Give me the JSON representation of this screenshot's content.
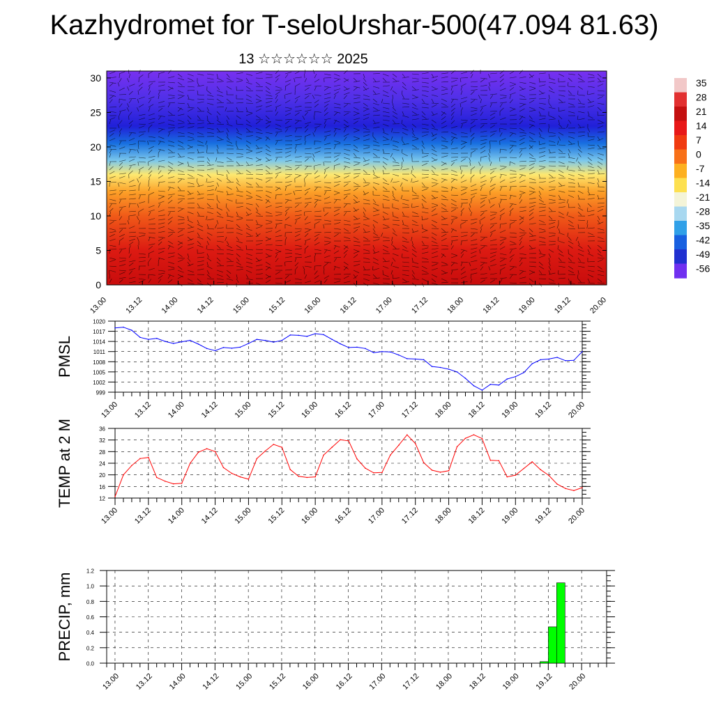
{
  "title": "Kazhydromet for T-seloUrshar-500(47.094 81.63)",
  "subtitle": "13 ☆☆☆☆☆☆ 2025",
  "chart_data": [
    {
      "type": "heatmap",
      "name": "cross-section",
      "ylim": [
        0,
        31
      ],
      "yticks": [
        0,
        5,
        10,
        15,
        20,
        25,
        30
      ],
      "xticks": [
        "13.00",
        "13.12",
        "14.00",
        "14.12",
        "15.00",
        "15.12",
        "16.00",
        "16.12",
        "17.00",
        "17.12",
        "18.00",
        "18.12",
        "19.00",
        "19.12",
        "20.00"
      ],
      "colorbar_labels": [
        "35",
        "28",
        "21",
        "14",
        "7",
        "0",
        "-7",
        "-14",
        "-21",
        "-28",
        "-35",
        "-42",
        "-49",
        "-56"
      ],
      "colorbar_colors": [
        "#f2c8c8",
        "#e23030",
        "#c41010",
        "#e81818",
        "#f03a10",
        "#f87018",
        "#fdb020",
        "#fde050",
        "#f4f4d8",
        "#a8d8f0",
        "#30a0e8",
        "#1860e0",
        "#2030d0",
        "#7030f0"
      ],
      "bands": [
        {
          "h": 0,
          "color": "#c80c0c"
        },
        {
          "h": 5,
          "color": "#dc1a12"
        },
        {
          "h": 10,
          "color": "#f05a18"
        },
        {
          "h": 13.5,
          "color": "#fca028"
        },
        {
          "h": 16,
          "color": "#fde870"
        },
        {
          "h": 18,
          "color": "#7cc8ec"
        },
        {
          "h": 20.5,
          "color": "#1870e0"
        },
        {
          "h": 23,
          "color": "#2020d8"
        },
        {
          "h": 27,
          "color": "#5030e8"
        },
        {
          "h": 31,
          "color": "#7830f0"
        }
      ]
    },
    {
      "type": "line",
      "ylabel": "PMSL",
      "ylim": [
        999,
        1020
      ],
      "yticks": [
        "1020",
        "1017",
        "1014",
        "1011",
        "1008",
        "1005",
        "1002",
        "999"
      ],
      "color": "#0000ff",
      "xticks": [
        "13.00",
        "13.12",
        "14.00",
        "14.12",
        "15.00",
        "15.12",
        "16.00",
        "16.12",
        "17.00",
        "17.12",
        "18.00",
        "18.12",
        "19.00",
        "19.12",
        "20.00"
      ],
      "x_hours": [
        0,
        3,
        6,
        9,
        12,
        15,
        18,
        21,
        24,
        27,
        30,
        33,
        36,
        39,
        42,
        45,
        48,
        51,
        54,
        57,
        60,
        63,
        66,
        69,
        72,
        75,
        78,
        81,
        84,
        87,
        90,
        93,
        96,
        99,
        102,
        105,
        108,
        111,
        114,
        117,
        120,
        123,
        126,
        129,
        132,
        135,
        138,
        141,
        144,
        147,
        150,
        153,
        156,
        159,
        162,
        165,
        168
      ],
      "values": [
        1018.0,
        1018.2,
        1017.3,
        1015.2,
        1014.6,
        1014.9,
        1014.0,
        1013.4,
        1013.9,
        1014.3,
        1013.2,
        1011.9,
        1011.3,
        1012.2,
        1012.0,
        1012.3,
        1013.4,
        1014.6,
        1014.3,
        1013.8,
        1014.3,
        1015.9,
        1015.8,
        1015.5,
        1016.3,
        1016.0,
        1014.6,
        1013.3,
        1012.2,
        1012.3,
        1011.9,
        1010.7,
        1011.0,
        1010.9,
        1010.0,
        1008.9,
        1008.8,
        1008.6,
        1006.6,
        1006.3,
        1005.8,
        1005.0,
        1003.1,
        1000.9,
        999.6,
        1001.3,
        1001.1,
        1002.9,
        1003.6,
        1004.8,
        1007.4,
        1008.6,
        1008.8,
        1009.3,
        1008.3,
        1008.4,
        1011.0
      ]
    },
    {
      "type": "line",
      "ylabel": "TEMP at 2 M",
      "ylim": [
        12,
        36
      ],
      "yticks": [
        "36",
        "32",
        "28",
        "24",
        "20",
        "16",
        "12"
      ],
      "color": "#ff0000",
      "xticks": [
        "13.00",
        "13.12",
        "14.00",
        "14.12",
        "15.00",
        "15.12",
        "16.00",
        "16.12",
        "17.00",
        "17.12",
        "18.00",
        "18.12",
        "19.00",
        "19.12",
        "20.00"
      ],
      "x_hours": [
        0,
        3,
        6,
        9,
        12,
        15,
        18,
        21,
        24,
        27,
        30,
        33,
        36,
        39,
        42,
        45,
        48,
        51,
        54,
        57,
        60,
        63,
        66,
        69,
        72,
        75,
        78,
        81,
        84,
        87,
        90,
        93,
        96,
        99,
        102,
        105,
        108,
        111,
        114,
        117,
        120,
        123,
        126,
        129,
        132,
        135,
        138,
        141,
        144,
        147,
        150,
        153,
        156,
        159,
        162,
        165,
        168
      ],
      "values": [
        12.5,
        20.0,
        23.2,
        25.6,
        26.0,
        19.1,
        17.8,
        16.9,
        17.1,
        24.0,
        27.8,
        29.0,
        28.0,
        22.5,
        20.5,
        19.3,
        18.5,
        25.6,
        28.2,
        30.5,
        29.5,
        21.8,
        19.5,
        19.1,
        19.3,
        26.8,
        29.5,
        32.1,
        31.7,
        25.5,
        22.3,
        20.7,
        20.8,
        26.8,
        30.2,
        33.8,
        30.8,
        24.2,
        21.6,
        20.9,
        21.4,
        29.7,
        32.6,
        33.8,
        32.5,
        25.0,
        24.9,
        19.3,
        19.9,
        22.2,
        24.5,
        21.8,
        19.8,
        16.8,
        15.3,
        14.6,
        15.6
      ]
    },
    {
      "type": "bar",
      "ylabel": "PRECIP, mm",
      "ylim": [
        0,
        1.2
      ],
      "yticks": [
        "1.2",
        "1.0",
        "0.8",
        "0.6",
        "0.4",
        "0.2",
        "0.0"
      ],
      "color": "#00ff00",
      "xticks": [
        "13.00",
        "13.12",
        "14.00",
        "14.12",
        "15.00",
        "15.12",
        "16.00",
        "16.12",
        "17.00",
        "17.12",
        "18.00",
        "18.12",
        "19.00",
        "19.12",
        "20.00"
      ],
      "bars": [
        {
          "x_hours": 153,
          "value": 0.02
        },
        {
          "x_hours": 156,
          "value": 0.47
        },
        {
          "x_hours": 159,
          "value": 1.04
        }
      ]
    }
  ]
}
